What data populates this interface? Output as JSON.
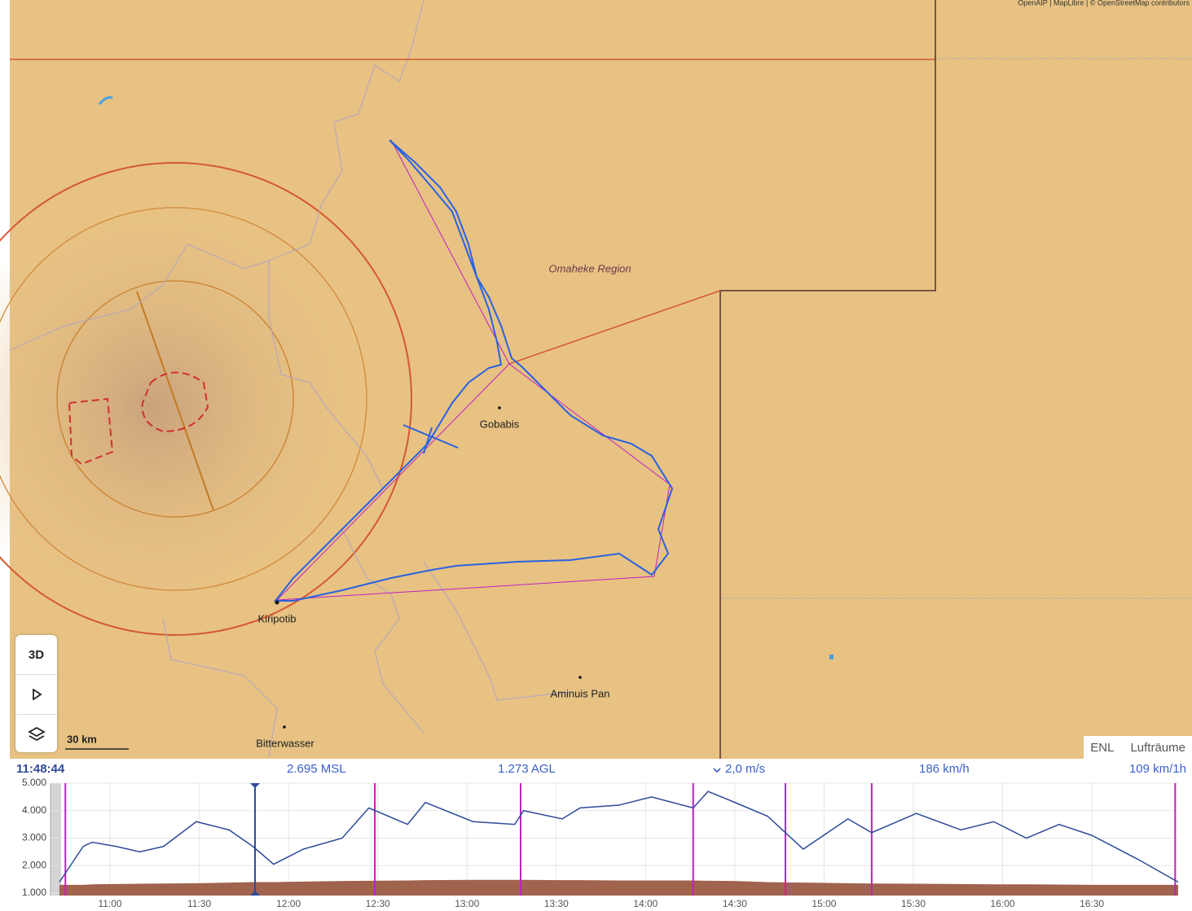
{
  "map": {
    "attribution": "OpenAIP | MapLibre | © OpenStreetMap contributors",
    "labels": {
      "region": "Omaheke Region",
      "gobabis": "Gobabis",
      "kiripotib": "Kiripotib",
      "aminuis": "Aminuis Pan",
      "bitterwasser": "Bitterwasser"
    },
    "scale": "30 km",
    "buttons": {
      "three_d": "3D"
    },
    "tabs": [
      "ENL",
      "Lufträume"
    ]
  },
  "status": {
    "msl": "2.695 MSL",
    "agl": "1.273 AGL",
    "vario": "2,0 m/s",
    "speed": "186 km/h",
    "avg": "109 km/1h"
  },
  "chart_data": {
    "type": "line",
    "cursor": "11:48:44",
    "x": [
      "10:43",
      "10:51",
      "10:54",
      "11:02",
      "11:10",
      "11:18",
      "11:29",
      "11:40",
      "11:48",
      "11:55",
      "12:05",
      "12:18",
      "12:27",
      "12:40",
      "12:46",
      "13:02",
      "13:16",
      "13:19",
      "13:32",
      "13:38",
      "13:51",
      "14:02",
      "14:16",
      "14:21",
      "14:30",
      "14:41",
      "14:53",
      "15:08",
      "15:16",
      "15:31",
      "15:46",
      "15:57",
      "16:08",
      "16:19",
      "16:30",
      "16:46",
      "16:59"
    ],
    "series": [
      {
        "color": "#2f4a9a",
        "values": [
          1400,
          2700,
          2850,
          2700,
          2500,
          2700,
          3600,
          3300,
          2700,
          2050,
          2600,
          3000,
          4100,
          3500,
          4300,
          3600,
          3500,
          4000,
          3700,
          4100,
          4200,
          4500,
          4100,
          4700,
          4300,
          3800,
          2600,
          3700,
          3200,
          3900,
          3300,
          3600,
          3000,
          3500,
          3100,
          2200,
          1400
        ]
      },
      {
        "color": "#a0634e",
        "values": [
          1300,
          1300,
          1320,
          1330,
          1340,
          1350,
          1360,
          1380,
          1400,
          1400,
          1420,
          1440,
          1450,
          1460,
          1470,
          1480,
          1480,
          1480,
          1470,
          1470,
          1460,
          1460,
          1460,
          1450,
          1440,
          1400,
          1380,
          1360,
          1350,
          1340,
          1330,
          1320,
          1320,
          1310,
          1300,
          1300,
          1300
        ]
      }
    ],
    "task_times": [
      "10:45",
      "12:29",
      "13:18",
      "14:16",
      "14:47",
      "15:16",
      "16:58"
    ],
    "task_color": "#c020c0",
    "xlim": [
      "10:40",
      "16:59"
    ],
    "xticks": [
      "11:00",
      "11:30",
      "12:00",
      "12:30",
      "13:00",
      "13:30",
      "14:00",
      "14:30",
      "15:00",
      "15:30",
      "16:00",
      "16:30"
    ],
    "ylim": [
      1000,
      5000
    ],
    "yticks": [
      {
        "value": 1000,
        "label": "1.000"
      },
      {
        "value": 2000,
        "label": "2.000"
      },
      {
        "value": 3000,
        "label": "3.000"
      },
      {
        "value": 4000,
        "label": "4.000"
      },
      {
        "value": 5000,
        "label": "5.000"
      }
    ],
    "grid": true
  }
}
